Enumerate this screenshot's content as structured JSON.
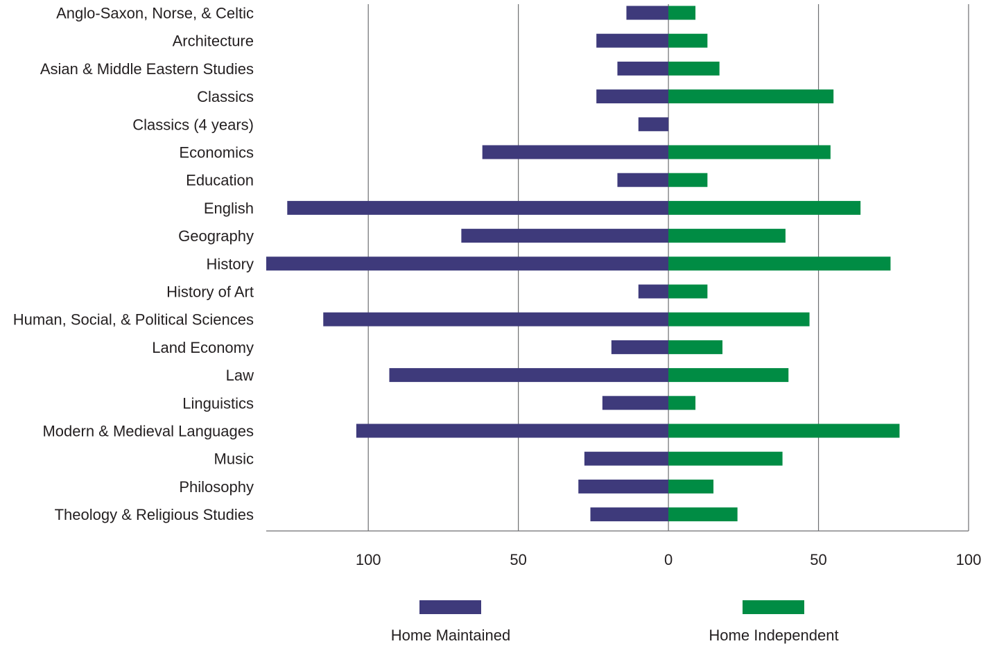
{
  "chart_data": {
    "type": "bar",
    "orientation": "horizontal-diverging",
    "categories": [
      "Anglo-Saxon, Norse, & Celtic",
      "Architecture",
      "Asian & Middle Eastern Studies",
      "Classics",
      "Classics (4 years)",
      "Economics",
      "Education",
      "English",
      "Geography",
      "History",
      "History of Art",
      "Human, Social, & Political Sciences",
      "Land Economy",
      "Law",
      "Linguistics",
      "Modern & Medieval Languages",
      "Music",
      "Philosophy",
      "Theology & Religious Studies"
    ],
    "series": [
      {
        "name": "Home Maintained",
        "direction": "left",
        "color": "#3e3a7b",
        "values": [
          14,
          24,
          17,
          24,
          10,
          62,
          17,
          127,
          69,
          134,
          10,
          115,
          19,
          93,
          22,
          104,
          28,
          30,
          26
        ]
      },
      {
        "name": "Home Independent",
        "direction": "right",
        "color": "#008c44",
        "values": [
          9,
          13,
          17,
          55,
          0,
          54,
          13,
          64,
          39,
          74,
          13,
          47,
          18,
          40,
          9,
          77,
          38,
          15,
          23
        ]
      }
    ],
    "xlim": [
      -134,
      100
    ],
    "xticks": [
      {
        "value": -100,
        "label": "100"
      },
      {
        "value": -50,
        "label": "50"
      },
      {
        "value": 0,
        "label": "0"
      },
      {
        "value": 50,
        "label": "50"
      },
      {
        "value": 100,
        "label": "100"
      }
    ],
    "grid": true,
    "legend": "bottom",
    "title": "",
    "xlabel": "",
    "ylabel": ""
  }
}
